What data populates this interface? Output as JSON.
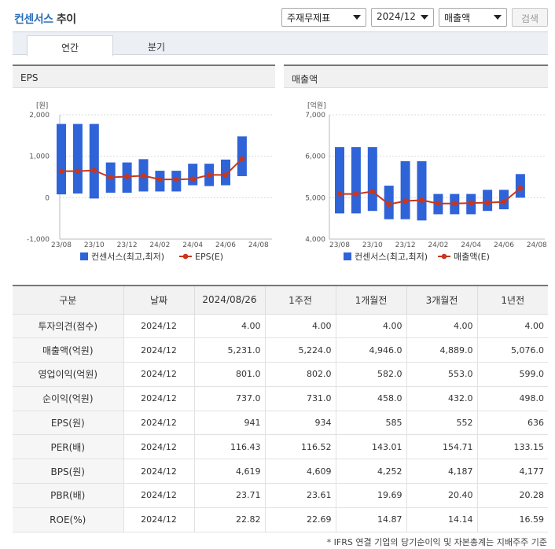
{
  "header": {
    "title_main": "컨센서스",
    "title_sub": "추이",
    "select_type": "주재무제표",
    "select_period": "2024/12",
    "select_metric": "매출액",
    "search_label": "검색"
  },
  "tabs": [
    {
      "label": "연간",
      "active": true
    },
    {
      "label": "분기",
      "active": false
    }
  ],
  "colors": {
    "bar": "#2f63d8",
    "line": "#c9361b",
    "accent": "#2c6fb7"
  },
  "chart_data": [
    {
      "type": "bar",
      "panel_title": "EPS",
      "unit": "[원]",
      "yticks": [
        "2,000",
        "1,000",
        "0",
        "-1,000"
      ],
      "ylim": [
        -1000,
        2000
      ],
      "xticks": [
        "23/08",
        "23/10",
        "23/12",
        "24/02",
        "24/04",
        "24/06",
        "24/08"
      ],
      "series": [
        {
          "name": "컨센서스(최고,최저)",
          "kind": "range-bar",
          "low": [
            80,
            100,
            -20,
            120,
            120,
            150,
            150,
            150,
            300,
            280,
            300,
            520
          ],
          "high": [
            1780,
            1780,
            1780,
            850,
            850,
            930,
            650,
            650,
            820,
            820,
            920,
            1480
          ]
        },
        {
          "name": "EPS(E)",
          "kind": "line",
          "values": [
            640,
            640,
            660,
            490,
            510,
            530,
            440,
            440,
            450,
            550,
            550,
            940
          ]
        }
      ]
    },
    {
      "type": "bar",
      "panel_title": "매출액",
      "unit": "[억원]",
      "yticks": [
        "7,000",
        "6,000",
        "5,000",
        "4,000"
      ],
      "ylim": [
        4000,
        7000
      ],
      "xticks": [
        "23/08",
        "23/10",
        "23/12",
        "24/02",
        "24/04",
        "24/06",
        "24/08"
      ],
      "series": [
        {
          "name": "컨센서스(최고,최저)",
          "kind": "range-bar",
          "low": [
            4620,
            4620,
            4680,
            4480,
            4480,
            4450,
            4600,
            4600,
            4600,
            4680,
            4720,
            5000
          ],
          "high": [
            6220,
            6220,
            6220,
            5290,
            5880,
            5880,
            5090,
            5090,
            5090,
            5190,
            5190,
            5570
          ]
        },
        {
          "name": "매출액(E)",
          "kind": "line",
          "values": [
            5090,
            5090,
            5150,
            4840,
            4920,
            4940,
            4860,
            4860,
            4870,
            4880,
            4900,
            5230
          ]
        }
      ]
    }
  ],
  "table": {
    "headers": [
      "구분",
      "날짜",
      "2024/08/26",
      "1주전",
      "1개월전",
      "3개월전",
      "1년전"
    ],
    "rows": [
      {
        "label": "투자의견(점수)",
        "date": "2024/12",
        "values": [
          "4.00",
          "4.00",
          "4.00",
          "4.00",
          "4.00"
        ]
      },
      {
        "label": "매출액(억원)",
        "date": "2024/12",
        "values": [
          "5,231.0",
          "5,224.0",
          "4,946.0",
          "4,889.0",
          "5,076.0"
        ]
      },
      {
        "label": "영업이익(억원)",
        "date": "2024/12",
        "values": [
          "801.0",
          "802.0",
          "582.0",
          "553.0",
          "599.0"
        ]
      },
      {
        "label": "순이익(억원)",
        "date": "2024/12",
        "values": [
          "737.0",
          "731.0",
          "458.0",
          "432.0",
          "498.0"
        ]
      },
      {
        "label": "EPS(원)",
        "date": "2024/12",
        "values": [
          "941",
          "934",
          "585",
          "552",
          "636"
        ]
      },
      {
        "label": "PER(배)",
        "date": "2024/12",
        "values": [
          "116.43",
          "116.52",
          "143.01",
          "154.71",
          "133.15"
        ]
      },
      {
        "label": "BPS(원)",
        "date": "2024/12",
        "values": [
          "4,619",
          "4,609",
          "4,252",
          "4,187",
          "4,177"
        ]
      },
      {
        "label": "PBR(배)",
        "date": "2024/12",
        "values": [
          "23.71",
          "23.61",
          "19.69",
          "20.40",
          "20.28"
        ]
      },
      {
        "label": "ROE(%)",
        "date": "2024/12",
        "values": [
          "22.82",
          "22.69",
          "14.87",
          "14.14",
          "16.59"
        ]
      }
    ]
  },
  "footnote": "* IFRS 연결 기업의 당기순이익 및 자본총계는 지배주주 기준"
}
